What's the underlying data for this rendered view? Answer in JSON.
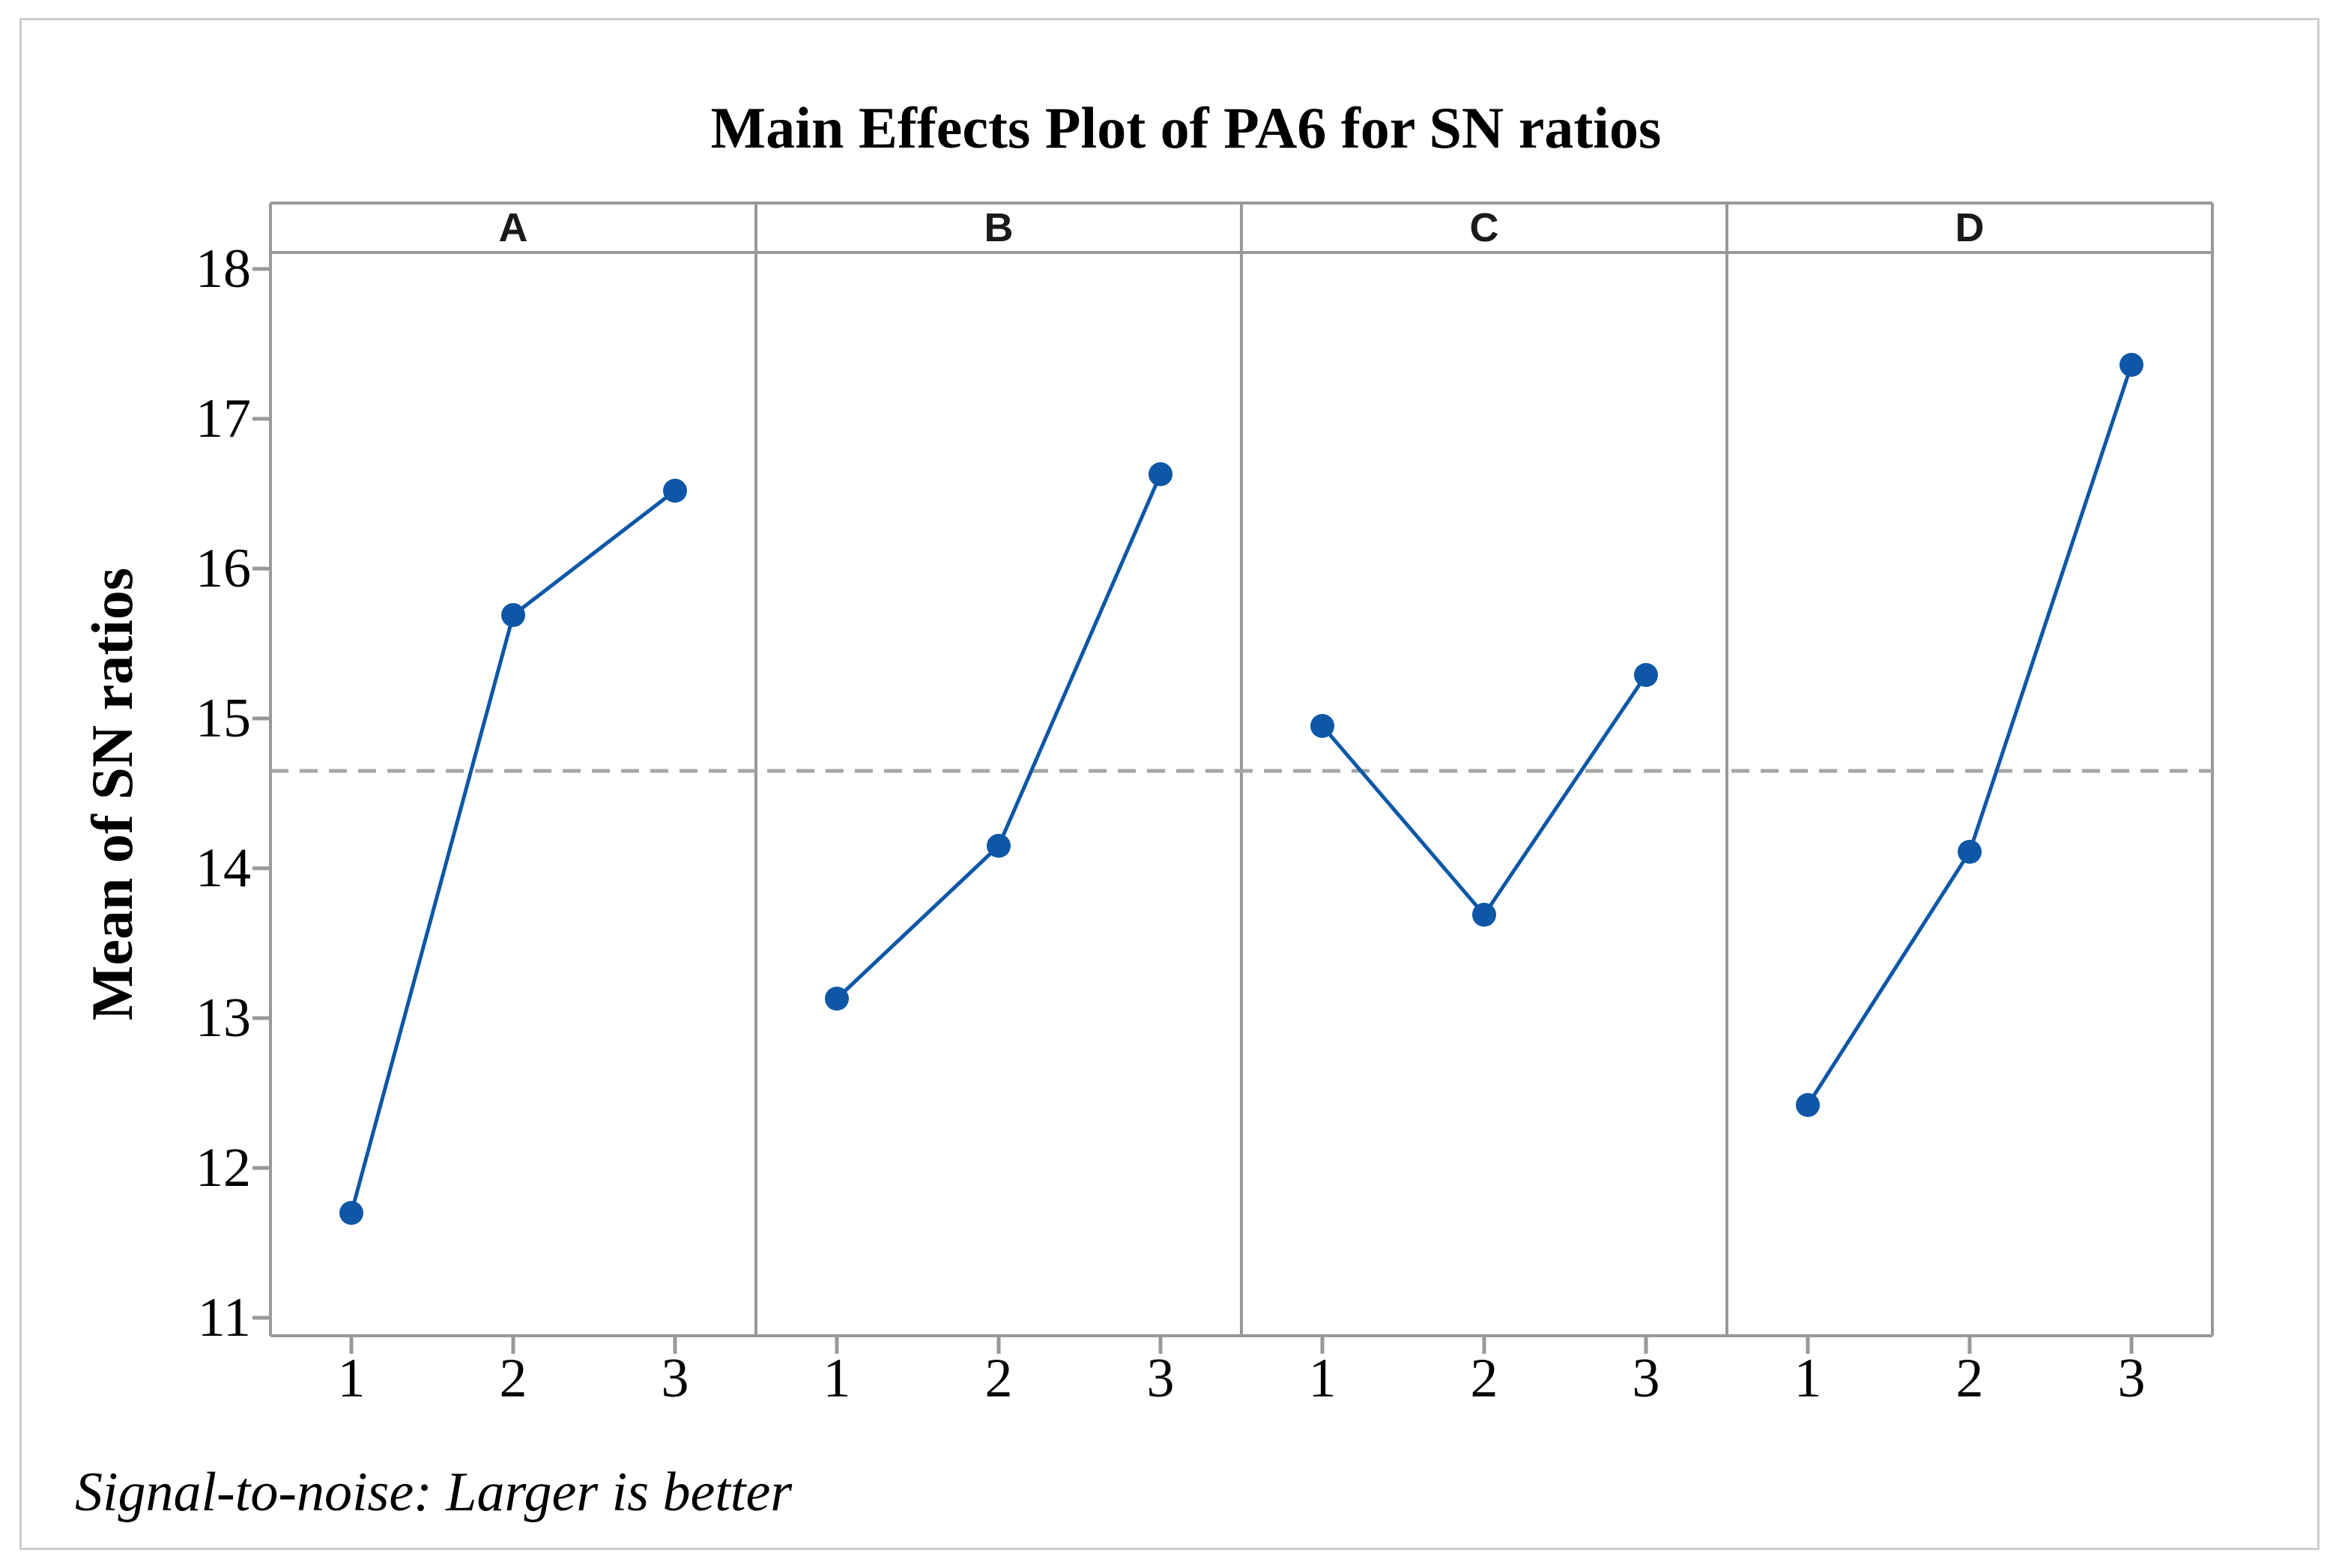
{
  "title": "Main Effects Plot of PA6 for SN ratios",
  "footnote": "Signal-to-noise: Larger is better",
  "colors": {
    "series_line": "#0d57a6",
    "axis_gray": "#999999",
    "reference_dash_gray": "#a6a6a6",
    "figure_frame_gray": "#cccccc",
    "text_black": "#000000"
  },
  "chart_data": {
    "type": "line",
    "title": "Main Effects Plot of PA6 for SN ratios",
    "ylabel": "Mean of SN ratios",
    "xlabel": "",
    "footnote": "Signal-to-noise: Larger is better",
    "panels": [
      "A",
      "B",
      "C",
      "D"
    ],
    "x_categories": [
      "1",
      "2",
      "3"
    ],
    "series": [
      {
        "name": "A",
        "x": [
          1,
          2,
          3
        ],
        "values": [
          11.7,
          15.69,
          16.52
        ]
      },
      {
        "name": "B",
        "x": [
          1,
          2,
          3
        ],
        "values": [
          13.13,
          14.15,
          16.63
        ]
      },
      {
        "name": "C",
        "x": [
          1,
          2,
          3
        ],
        "values": [
          14.95,
          13.69,
          15.29
        ]
      },
      {
        "name": "D",
        "x": [
          1,
          2,
          3
        ],
        "values": [
          12.42,
          14.11,
          17.36
        ]
      }
    ],
    "reference_line_overall_mean": 14.65,
    "yticks": [
      18,
      17,
      16,
      15,
      14,
      13,
      12,
      11
    ],
    "ylim": [
      10.88,
      18.11
    ],
    "grid": "off",
    "legend": "none",
    "marker": "filled-circle",
    "reference_line_style": "dashed"
  }
}
